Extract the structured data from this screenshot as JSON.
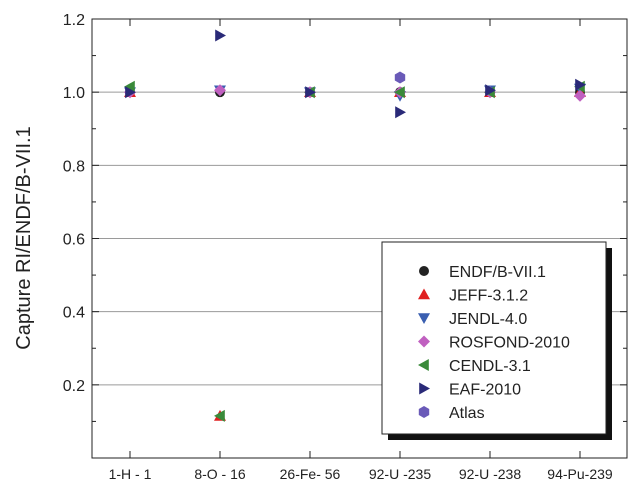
{
  "chart_data": {
    "type": "scatter",
    "title": "",
    "xlabel": "",
    "ylabel": "Capture RI/ENDF/B-VII.1",
    "categories": [
      "1-H - 1",
      "8-O - 16",
      "26-Fe- 56",
      "92-U -235",
      "92-U -238",
      "94-Pu-239"
    ],
    "ylim": [
      0.0,
      1.2
    ],
    "yticks": [
      "0.2",
      "0.4",
      "0.6",
      "0.8",
      "1.0",
      "1.2"
    ],
    "grid": "horizontal",
    "legend_position": "bottom-right",
    "series": [
      {
        "name": "ENDF/B-VII.1",
        "marker": "circle",
        "color": "#222222",
        "values": [
          1.0,
          1.0,
          1.0,
          1.0,
          1.0,
          1.0
        ]
      },
      {
        "name": "JEFF-3.1.2",
        "marker": "triangle-up",
        "color": "#e02020",
        "values": [
          1.0,
          0.115,
          1.0,
          1.0,
          1.0,
          1.0
        ]
      },
      {
        "name": "JENDL-4.0",
        "marker": "triangle-down",
        "color": "#3a5fb0",
        "values": [
          1.0,
          1.005,
          1.0,
          0.99,
          1.005,
          1.01
        ]
      },
      {
        "name": "ROSFOND-2010",
        "marker": "diamond",
        "color": "#c060c0",
        "values": [
          1.0,
          1.005,
          1.0,
          1.0,
          1.0,
          0.99
        ]
      },
      {
        "name": "CENDL-3.1",
        "marker": "triangle-left",
        "color": "#3a8a3a",
        "values": [
          1.015,
          0.115,
          1.0,
          1.0,
          1.0,
          1.015
        ]
      },
      {
        "name": "EAF-2010",
        "marker": "triangle-right",
        "color": "#2a2a78",
        "values": [
          1.0,
          1.155,
          1.0,
          0.945,
          1.005,
          1.02
        ]
      },
      {
        "name": "Atlas",
        "marker": "hexagon",
        "color": "#6a5ab8",
        "values": [
          null,
          null,
          null,
          1.04,
          null,
          null
        ]
      }
    ]
  }
}
